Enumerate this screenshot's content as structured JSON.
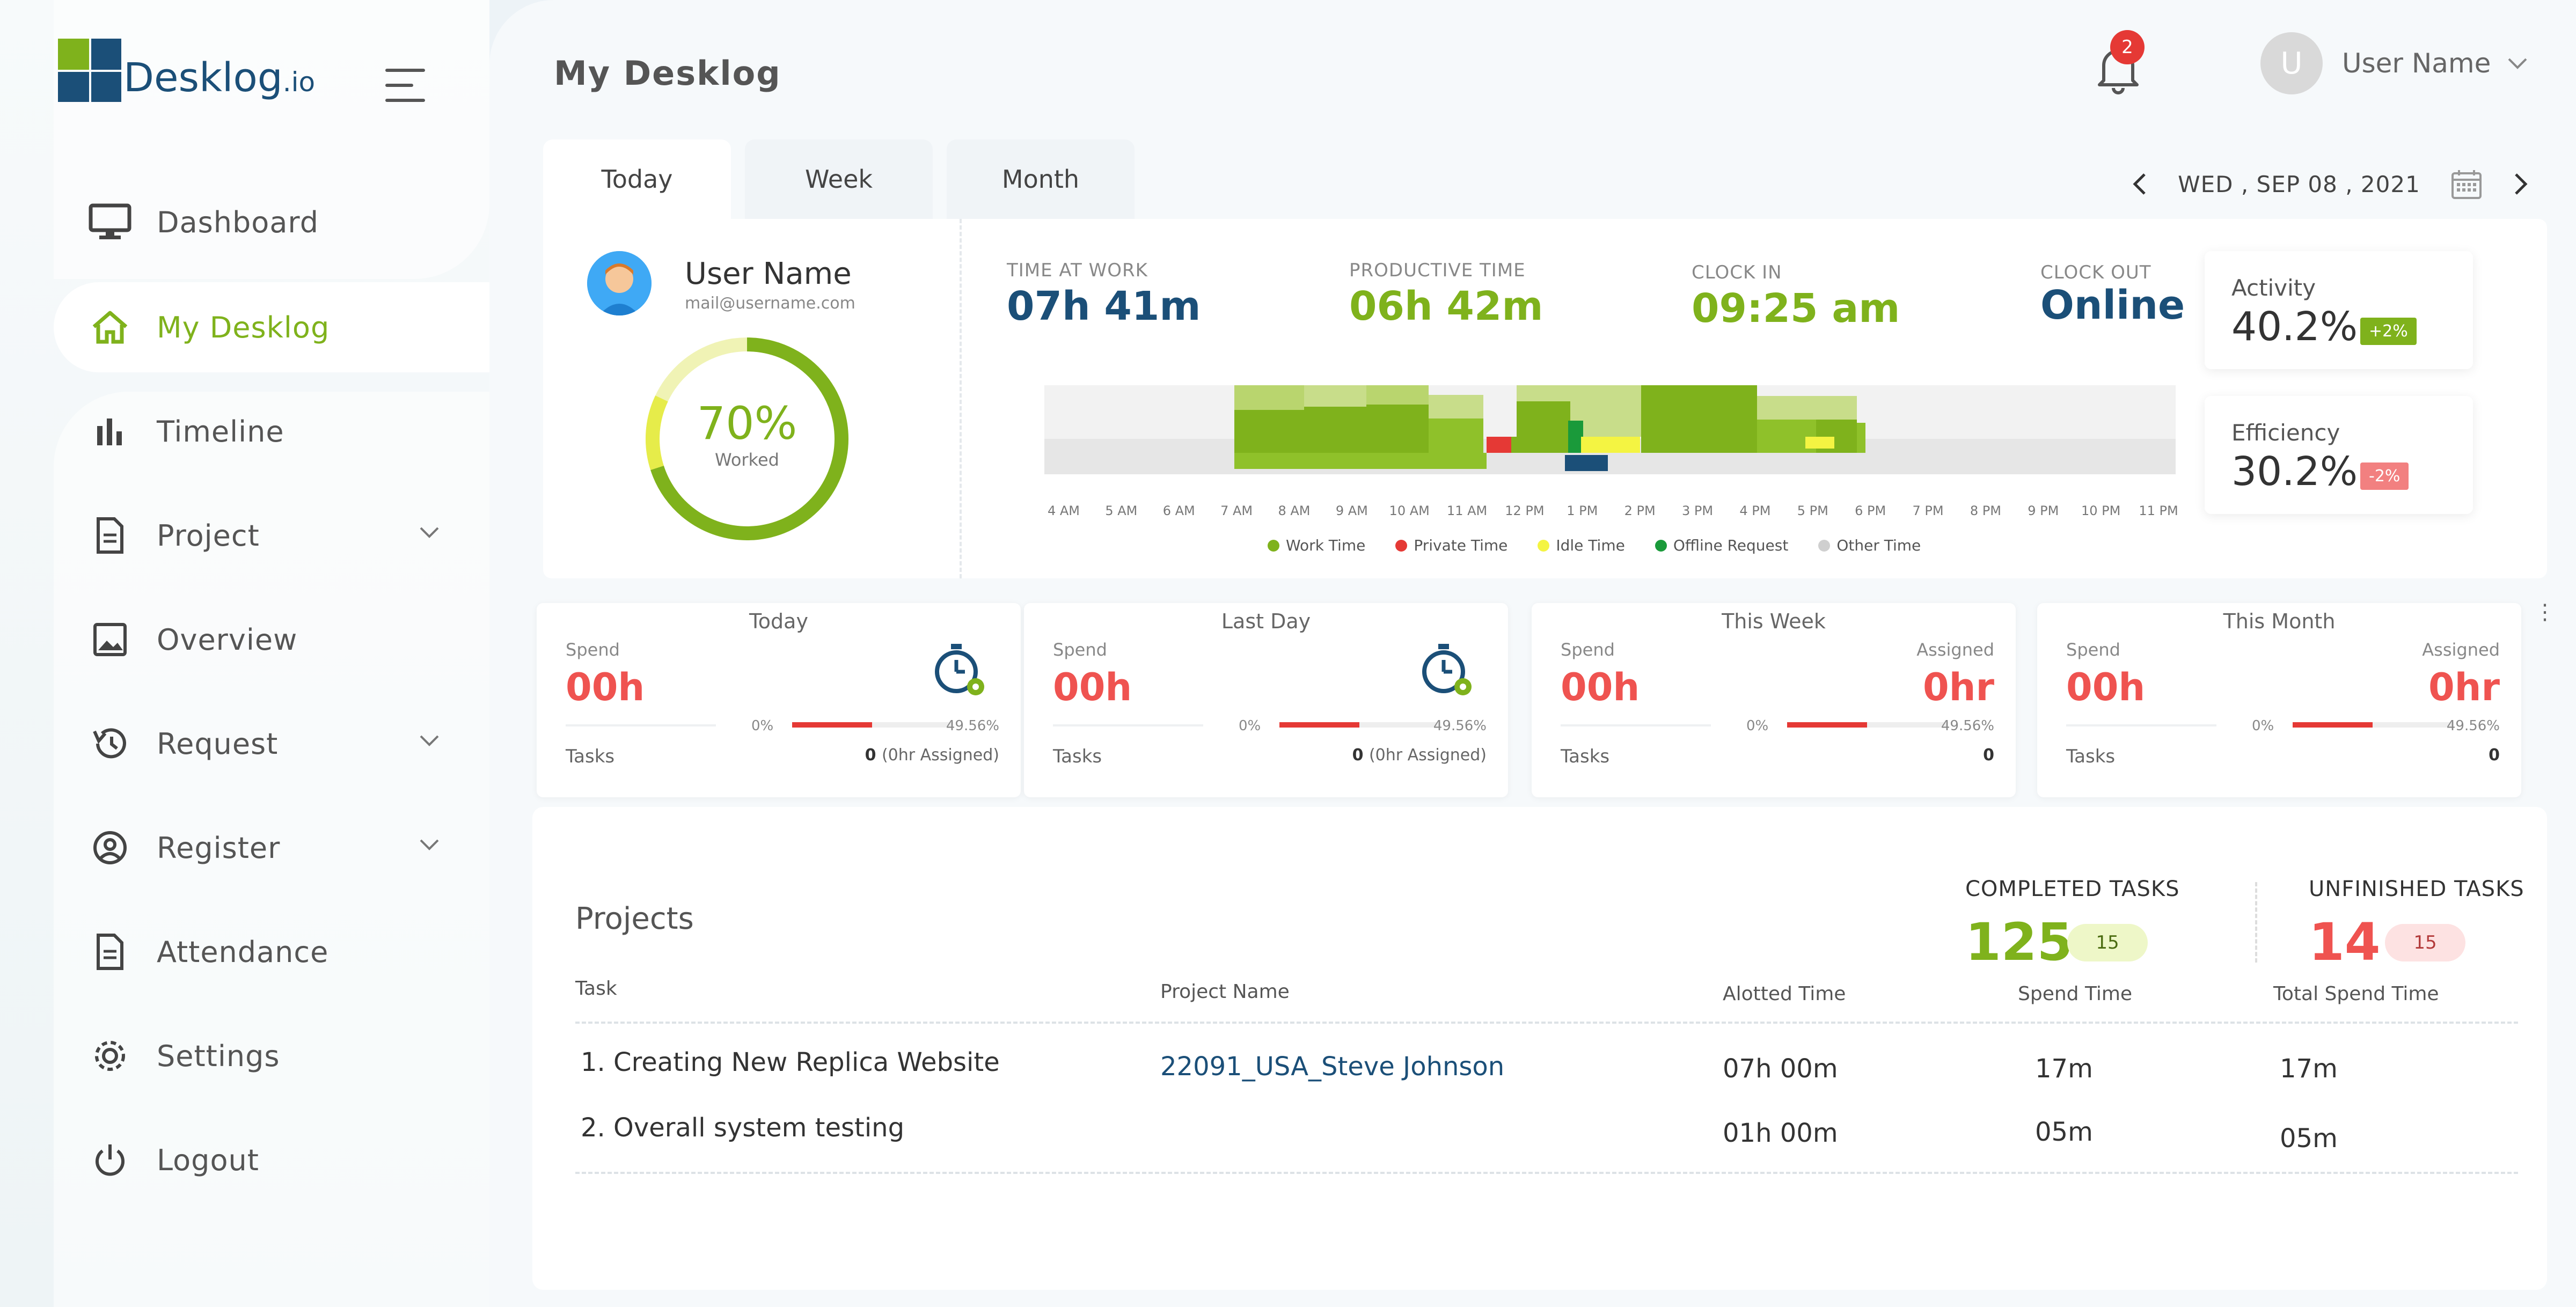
{
  "app": {
    "logo_text": "Desklog",
    "logo_suffix": ".io"
  },
  "colors": {
    "brand_green": "#7fb21c",
    "brand_blue": "#1b4f78",
    "alert_red": "#ef5350",
    "work_time": "#7fb21c",
    "private_time": "#e53935",
    "idle_time": "#f4f442",
    "offline_request": "#1a9a3a",
    "other_time": "#cfcfcf"
  },
  "sidebar": {
    "items": [
      {
        "label": "Dashboard",
        "icon": "monitor-icon"
      },
      {
        "label": "My Desklog",
        "icon": "home-icon",
        "active": true
      },
      {
        "label": "Timeline",
        "icon": "bar-chart-icon"
      },
      {
        "label": "Project",
        "icon": "document-icon",
        "has_submenu": true
      },
      {
        "label": "Overview",
        "icon": "image-icon"
      },
      {
        "label": "Request",
        "icon": "history-icon",
        "has_submenu": true
      },
      {
        "label": "Register",
        "icon": "user-circle-icon",
        "has_submenu": true
      },
      {
        "label": "Attendance",
        "icon": "document-icon"
      },
      {
        "label": "Settings",
        "icon": "gear-icon"
      },
      {
        "label": "Logout",
        "icon": "power-icon"
      }
    ]
  },
  "header": {
    "title": "My Desklog",
    "notifications": "2",
    "user_initial": "U",
    "user_name": "User Name"
  },
  "tabs": [
    "Today",
    "Week",
    "Month"
  ],
  "date": "WED , SEP 08 , 2021",
  "profile": {
    "name": "User Name",
    "email": "mail@username.com",
    "worked_percent": "70%",
    "worked_fraction": 0.7,
    "worked_label": "Worked"
  },
  "stats": {
    "time_at_work": {
      "label": "TIME AT WORK",
      "value": "07h 41m"
    },
    "productive_time": {
      "label": "PRODUCTIVE TIME",
      "value": "06h 42m"
    },
    "clock_in": {
      "label": "CLOCK IN",
      "value": "09:25 am"
    },
    "clock_out": {
      "label": "CLOCK OUT",
      "value": "Online"
    }
  },
  "timeline": {
    "ticks": [
      "4 AM",
      "5 AM",
      "6 AM",
      "7 AM",
      "8 AM",
      "9 AM",
      "10 AM",
      "11 AM",
      "12 PM",
      "1 PM",
      "2 PM",
      "3 PM",
      "4 PM",
      "5 PM",
      "6 PM",
      "7 PM",
      "8 PM",
      "9 PM",
      "10 PM",
      "11 PM"
    ],
    "legend": [
      {
        "label": "Work Time",
        "color": "#7fb21c"
      },
      {
        "label": "Private Time",
        "color": "#e53935"
      },
      {
        "label": "Idle Time",
        "color": "#f4f442"
      },
      {
        "label": "Offline Request",
        "color": "#1a9a3a"
      },
      {
        "label": "Other Time",
        "color": "#cfcfcf"
      }
    ]
  },
  "activity": {
    "label": "Activity",
    "value": "40.2%",
    "change": "+2%"
  },
  "efficiency": {
    "label": "Efficiency",
    "value": "30.2%",
    "change": "-2%"
  },
  "summary": [
    {
      "title": "Today",
      "spend_label": "Spend",
      "spend": "00h",
      "min": "0%",
      "max": "49.56%",
      "progress": 0.4956,
      "tasks_label": "Tasks",
      "tasks": "0",
      "tasks_note": "(0hr Assigned)"
    },
    {
      "title": "Last Day",
      "spend_label": "Spend",
      "spend": "00h",
      "min": "0%",
      "max": "49.56%",
      "progress": 0.4956,
      "tasks_label": "Tasks",
      "tasks": "0",
      "tasks_note": "(0hr Assigned)"
    },
    {
      "title": "This Week",
      "spend_label": "Spend",
      "spend": "00h",
      "assigned_label": "Assigned",
      "assigned": "0hr",
      "min": "0%",
      "max": "49.56%",
      "progress": 0.4956,
      "tasks_label": "Tasks",
      "tasks": "0"
    },
    {
      "title": "This Month",
      "spend_label": "Spend",
      "spend": "00h",
      "assigned_label": "Assigned",
      "assigned": "0hr",
      "min": "0%",
      "max": "49.56%",
      "progress": 0.4956,
      "tasks_label": "Tasks",
      "tasks": "0"
    }
  ],
  "projects": {
    "title": "Projects",
    "completed_label": "COMPLETED TASKS",
    "completed": "125",
    "completed_badge": "15",
    "unfinished_label": "UNFINISHED TASKS",
    "unfinished": "14",
    "unfinished_badge": "15",
    "columns": [
      "Task",
      "Project Name",
      "Alotted Time",
      "Spend Time",
      "Total Spend Time"
    ],
    "rows": [
      {
        "task": "1. Creating New Replica Website",
        "project": "22091_USA_Steve Johnson",
        "alotted": "07h 00m",
        "spend": "17m",
        "total": "17m"
      },
      {
        "task": "2. Overall system testing",
        "project": "",
        "alotted": "01h 00m",
        "spend": "05m",
        "total": "05m"
      }
    ]
  }
}
